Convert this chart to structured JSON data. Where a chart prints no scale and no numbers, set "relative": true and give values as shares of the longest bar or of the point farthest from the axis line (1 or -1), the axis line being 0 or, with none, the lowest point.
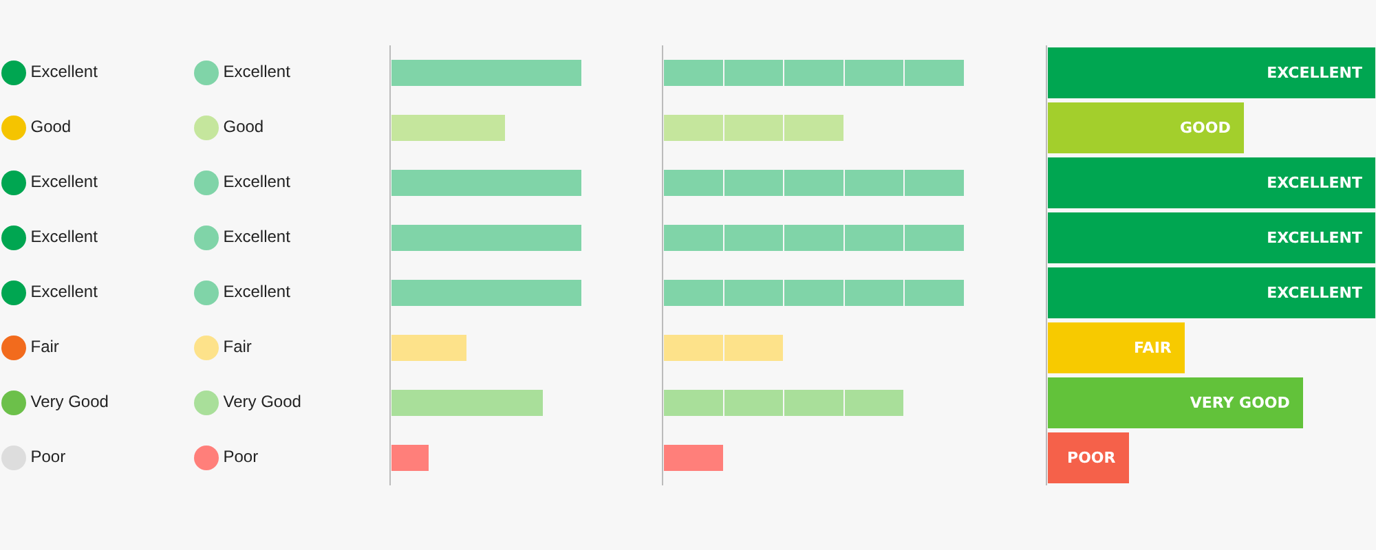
{
  "chart_data": [
    {
      "type": "other",
      "categories": [
        "Excellent",
        "Good",
        "Excellent",
        "Excellent",
        "Excellent",
        "Fair",
        "Very Good",
        "Poor"
      ],
      "colors": [
        "#00a651",
        "#f5c400",
        "#00a651",
        "#00a651",
        "#00a651",
        "#f26b1d",
        "#6cc04a",
        "#dddddd"
      ]
    },
    {
      "type": "other",
      "categories": [
        "Excellent",
        "Good",
        "Excellent",
        "Excellent",
        "Excellent",
        "Fair",
        "Very Good",
        "Poor"
      ],
      "colors": [
        "#80d4a8",
        "#c5e69d",
        "#80d4a8",
        "#80d4a8",
        "#80d4a8",
        "#fde28a",
        "#a9df9a",
        "#ff7f7a"
      ]
    },
    {
      "type": "bar",
      "orientation": "horizontal",
      "relative": true,
      "categories": [
        null,
        null,
        null,
        null,
        null,
        null,
        null,
        null
      ],
      "values": [
        1,
        0.6,
        1,
        1,
        1,
        0.4,
        0.8,
        0.2
      ],
      "colors": [
        "#80d4a8",
        "#c5e69d",
        "#80d4a8",
        "#80d4a8",
        "#80d4a8",
        "#fde28a",
        "#a9df9a",
        "#ff7f7a"
      ]
    },
    {
      "type": "bar",
      "orientation": "horizontal",
      "stacked": true,
      "relative": true,
      "categories": [
        null,
        null,
        null,
        null,
        null,
        null,
        null,
        null
      ],
      "series": [
        {
          "values": [
            0.2,
            0.2,
            0.2,
            0.2,
            0.2,
            0.2,
            0.2,
            0.2
          ],
          "colors": [
            "#80d4a8",
            "#c5e69d",
            "#80d4a8",
            "#80d4a8",
            "#80d4a8",
            "#fde28a",
            "#a9df9a",
            "#ff7f7a"
          ]
        },
        {
          "values": [
            0.2,
            0.2,
            0.2,
            0.2,
            0.2,
            0.2,
            0.2,
            null
          ],
          "colors": [
            "#80d4a8",
            "#c5e69d",
            "#80d4a8",
            "#80d4a8",
            "#80d4a8",
            "#fde28a",
            "#a9df9a",
            "#ff7f7a"
          ]
        },
        {
          "values": [
            0.2,
            0.2,
            0.2,
            0.2,
            0.2,
            null,
            0.2,
            null
          ],
          "colors": [
            "#80d4a8",
            "#c5e69d",
            "#80d4a8",
            "#80d4a8",
            "#80d4a8",
            "#fde28a",
            "#a9df9a",
            "#ff7f7a"
          ]
        },
        {
          "values": [
            0.2,
            null,
            0.2,
            0.2,
            0.2,
            null,
            0.2,
            null
          ],
          "colors": [
            "#80d4a8",
            "#c5e69d",
            "#80d4a8",
            "#80d4a8",
            "#80d4a8",
            "#fde28a",
            "#a9df9a",
            "#ff7f7a"
          ]
        },
        {
          "values": [
            0.2,
            null,
            0.2,
            0.2,
            0.2,
            null,
            null,
            null
          ],
          "colors": [
            "#80d4a8",
            "#c5e69d",
            "#80d4a8",
            "#80d4a8",
            "#80d4a8",
            "#fde28a",
            "#a9df9a",
            "#ff7f7a"
          ]
        }
      ]
    },
    {
      "type": "bar",
      "orientation": "horizontal",
      "relative": true,
      "categories": [
        null,
        null,
        null,
        null,
        null,
        null,
        null,
        null
      ],
      "values": [
        1,
        0.6,
        1,
        1,
        1,
        0.42,
        0.78,
        0.25
      ],
      "colors": [
        "#00a651",
        "#a3cf2c",
        "#00a651",
        "#00a651",
        "#00a651",
        "#f7ca00",
        "#62c23a",
        "#f5614a"
      ],
      "annotations": [
        "EXCELLENT",
        "GOOD",
        "EXCELLENT",
        "EXCELLENT",
        "EXCELLENT",
        "FAIR",
        "VERY GOOD",
        "POOR"
      ]
    }
  ]
}
